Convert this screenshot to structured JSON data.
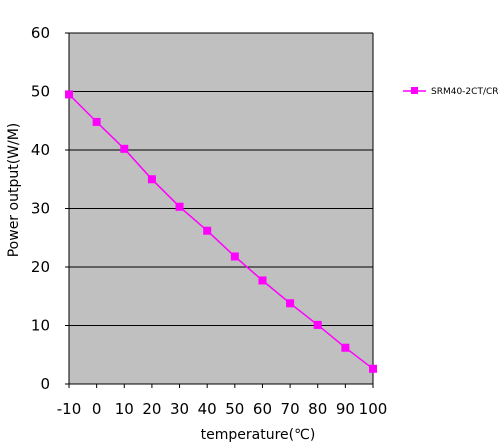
{
  "chart_data": {
    "type": "line",
    "title": "",
    "xlabel": "temperature(℃)",
    "ylabel": "Power output(W/M)",
    "x": [
      -10,
      0,
      10,
      20,
      30,
      40,
      50,
      60,
      70,
      80,
      90,
      100
    ],
    "x_ticks": [
      "-10",
      "0",
      "10",
      "20",
      "30",
      "40",
      "50",
      "60",
      "70",
      "80",
      "90",
      "100"
    ],
    "y_ticks": [
      "0",
      "10",
      "20",
      "30",
      "40",
      "50",
      "60"
    ],
    "xlim": [
      -10,
      100
    ],
    "ylim": [
      0,
      60
    ],
    "grid": "horizontal",
    "legend_position": "right",
    "colors": {
      "series": "#ff00ff",
      "plot_background": "#c0c0c0",
      "grid": "#000000"
    },
    "series": [
      {
        "name": "SRM40-2CT/CR",
        "marker": "square",
        "values": [
          49.5,
          44.8,
          40.2,
          35.0,
          30.3,
          26.2,
          21.8,
          17.7,
          13.8,
          10.1,
          6.2,
          2.6
        ]
      }
    ]
  }
}
